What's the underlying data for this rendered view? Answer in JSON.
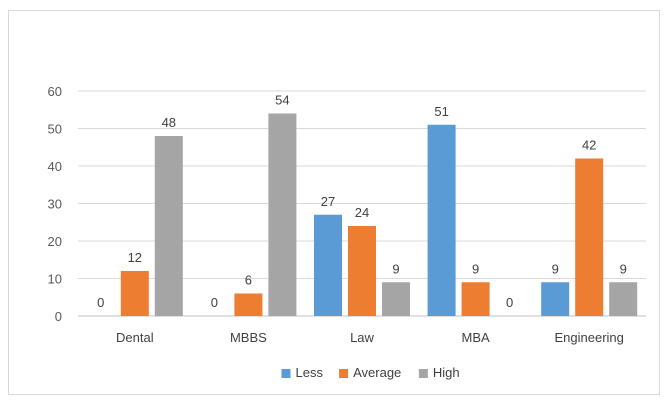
{
  "chart_data": {
    "type": "bar",
    "title": "",
    "xlabel": "",
    "ylabel": "",
    "categories": [
      "Dental",
      "MBBS",
      "Law",
      "MBA",
      "Engineering"
    ],
    "series": [
      {
        "name": "Less",
        "values": [
          0,
          0,
          27,
          51,
          9
        ],
        "color": "#5b9bd5"
      },
      {
        "name": "Average",
        "values": [
          12,
          6,
          24,
          9,
          42
        ],
        "color": "#ed7d31"
      },
      {
        "name": "High",
        "values": [
          48,
          54,
          9,
          0,
          9
        ],
        "color": "#a5a5a5"
      }
    ],
    "ylim": [
      0,
      60
    ],
    "yticks": [
      0,
      10,
      20,
      30,
      40,
      50,
      60
    ],
    "grid": true,
    "legend_position": "bottom"
  }
}
